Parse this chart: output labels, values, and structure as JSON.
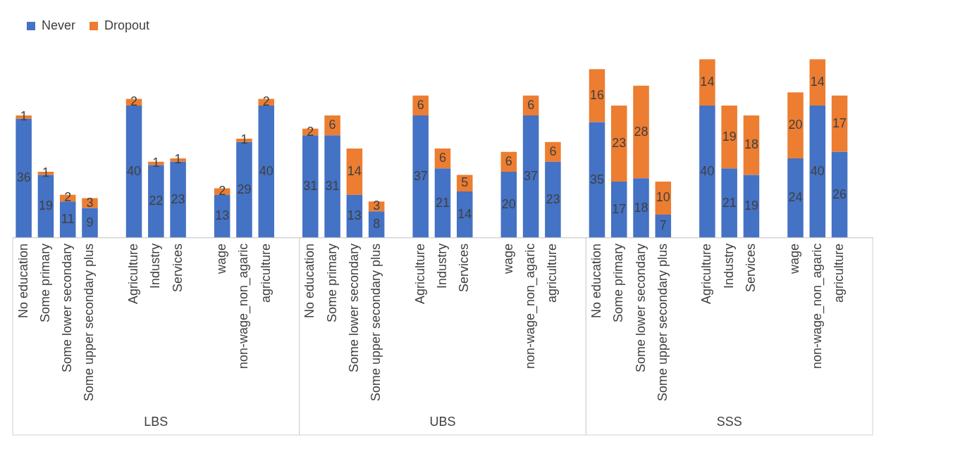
{
  "chart_data": {
    "type": "bar",
    "stacked": true,
    "data_labels": true,
    "grid": false,
    "legend": "top left",
    "categories": [
      "No education",
      "Some primary",
      "Some lower secondary",
      "Some upper secondary plus",
      null,
      "Agriculture",
      "Industry",
      "Services",
      null,
      "wage",
      "non-wage_non_agaric",
      "agriculture",
      null,
      "No education",
      "Some primary",
      "Some lower secondary",
      "Some upper secondary plus",
      null,
      "Agriculture",
      "Industry",
      "Services",
      null,
      "wage",
      "non-wage_non_agaric",
      "agriculture",
      null,
      "No education",
      "Some primary",
      "Some lower secondary",
      "Some upper secondary plus",
      null,
      "Agriculture",
      "Industry",
      "Services",
      null,
      "wage",
      "non-wage_non_agaric",
      "agriculture",
      null
    ],
    "series": [
      {
        "name": "Never",
        "color": "#4472c4",
        "values": [
          36,
          19,
          11,
          9,
          null,
          40,
          22,
          23,
          null,
          13,
          29,
          40,
          null,
          31,
          31,
          13,
          8,
          null,
          37,
          21,
          14,
          null,
          20,
          37,
          23,
          null,
          35,
          17,
          18,
          7,
          null,
          40,
          21,
          19,
          null,
          24,
          40,
          26,
          null
        ]
      },
      {
        "name": "Dropout",
        "color": "#ed7d31",
        "values": [
          1,
          1,
          2,
          3,
          null,
          2,
          1,
          1,
          null,
          2,
          1,
          2,
          null,
          2,
          6,
          14,
          3,
          null,
          6,
          6,
          5,
          null,
          6,
          6,
          6,
          null,
          16,
          23,
          28,
          10,
          null,
          14,
          19,
          18,
          null,
          20,
          14,
          17,
          null
        ]
      }
    ],
    "annotations": [
      "LBS",
      "UBS",
      "SSS"
    ]
  }
}
